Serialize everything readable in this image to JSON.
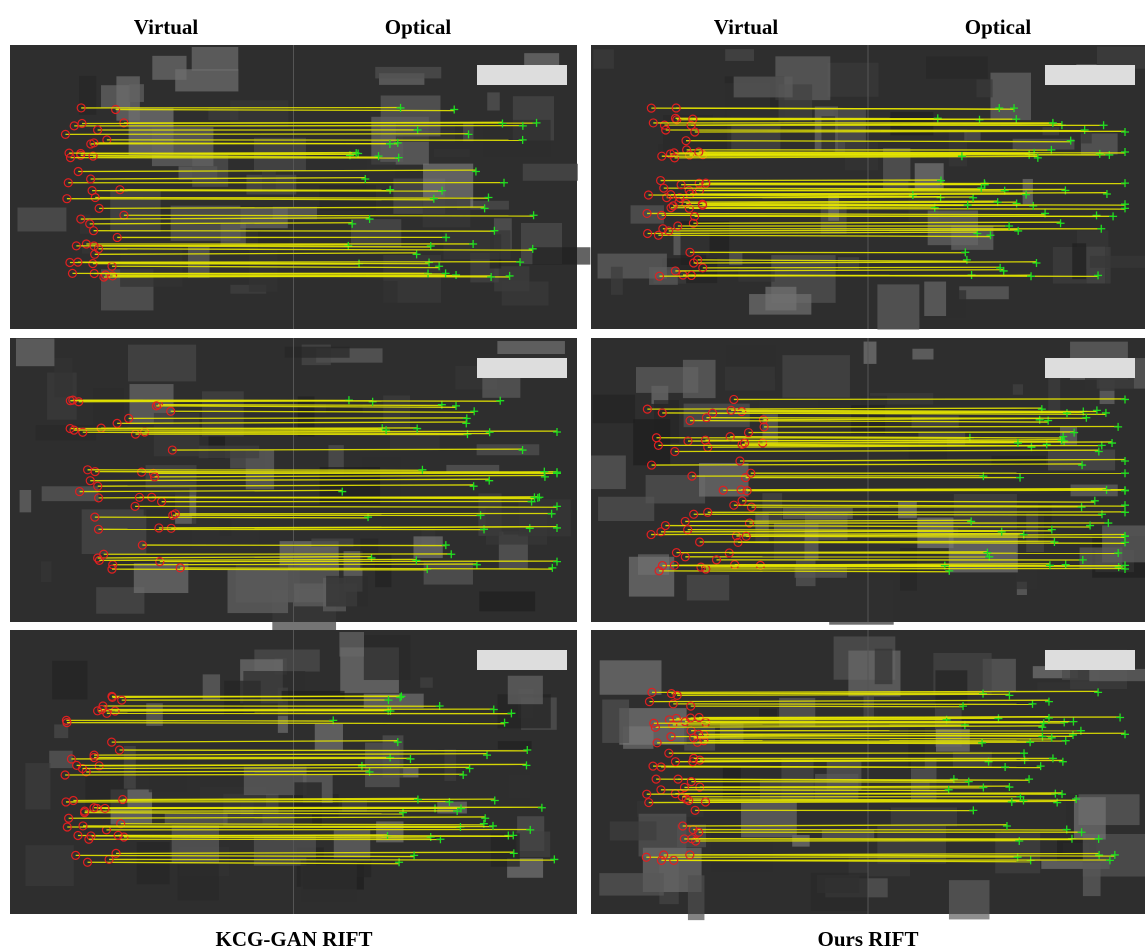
{
  "columns": [
    {
      "headers": [
        "Virtual",
        "Optical"
      ],
      "caption": "KCG-GAN RIFT"
    },
    {
      "headers": [
        "Virtual",
        "Optical"
      ],
      "caption": "Ours RIFT"
    }
  ]
}
